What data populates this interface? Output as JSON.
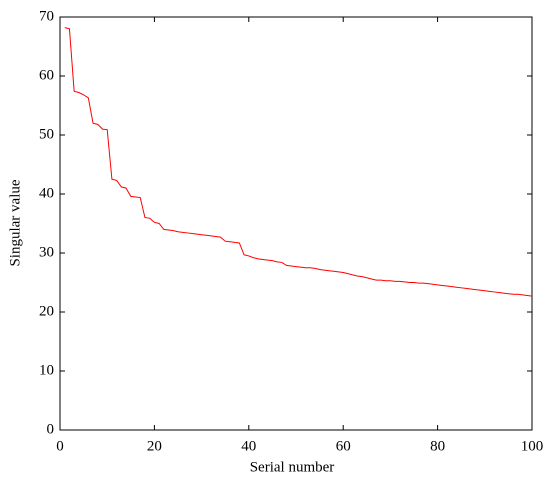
{
  "chart_data": {
    "type": "line",
    "x_label": "Serial number",
    "y_label": "Singular value",
    "x": [
      1,
      2,
      3,
      4,
      5,
      6,
      7,
      8,
      9,
      10,
      11,
      12,
      13,
      14,
      15,
      16,
      17,
      18,
      19,
      20,
      21,
      22,
      23,
      24,
      25,
      26,
      27,
      28,
      29,
      30,
      31,
      32,
      33,
      34,
      35,
      36,
      37,
      38,
      39,
      40,
      41,
      42,
      43,
      44,
      45,
      46,
      47,
      48,
      49,
      50,
      51,
      52,
      53,
      54,
      55,
      56,
      57,
      58,
      59,
      60,
      61,
      62,
      63,
      64,
      65,
      66,
      67,
      68,
      69,
      70,
      71,
      72,
      73,
      74,
      75,
      76,
      77,
      78,
      79,
      80,
      81,
      82,
      83,
      84,
      85,
      86,
      87,
      88,
      89,
      90,
      91,
      92,
      93,
      94,
      95,
      96,
      97,
      98,
      99,
      100
    ],
    "series": [
      {
        "color": "#ff0000",
        "values": [
          68.2,
          68.0,
          57.4,
          57.2,
          56.8,
          56.3,
          52.0,
          51.8,
          51.0,
          50.9,
          42.5,
          42.3,
          41.2,
          41.0,
          39.6,
          39.5,
          39.4,
          36.0,
          35.9,
          35.2,
          35.0,
          34.0,
          33.9,
          33.8,
          33.6,
          33.5,
          33.4,
          33.3,
          33.2,
          33.1,
          33.0,
          32.9,
          32.8,
          32.7,
          32.0,
          31.9,
          31.8,
          31.7,
          29.7,
          29.5,
          29.2,
          29.0,
          28.9,
          28.8,
          28.7,
          28.5,
          28.4,
          27.9,
          27.8,
          27.7,
          27.6,
          27.5,
          27.5,
          27.4,
          27.2,
          27.1,
          27.0,
          26.9,
          26.8,
          26.7,
          26.5,
          26.3,
          26.1,
          26.0,
          25.8,
          25.6,
          25.4,
          25.4,
          25.3,
          25.3,
          25.2,
          25.2,
          25.1,
          25.0,
          25.0,
          24.9,
          24.9,
          24.8,
          24.7,
          24.6,
          24.5,
          24.4,
          24.3,
          24.2,
          24.1,
          24.0,
          23.9,
          23.8,
          23.7,
          23.6,
          23.5,
          23.4,
          23.3,
          23.2,
          23.1,
          23.0,
          23.0,
          22.9,
          22.8,
          22.7
        ]
      }
    ],
    "xlim": [
      0,
      100
    ],
    "xticks": [
      0,
      20,
      40,
      60,
      80,
      100
    ],
    "ylim": [
      0,
      70
    ],
    "yticks": [
      0,
      10,
      20,
      30,
      40,
      50,
      60,
      70
    ]
  }
}
